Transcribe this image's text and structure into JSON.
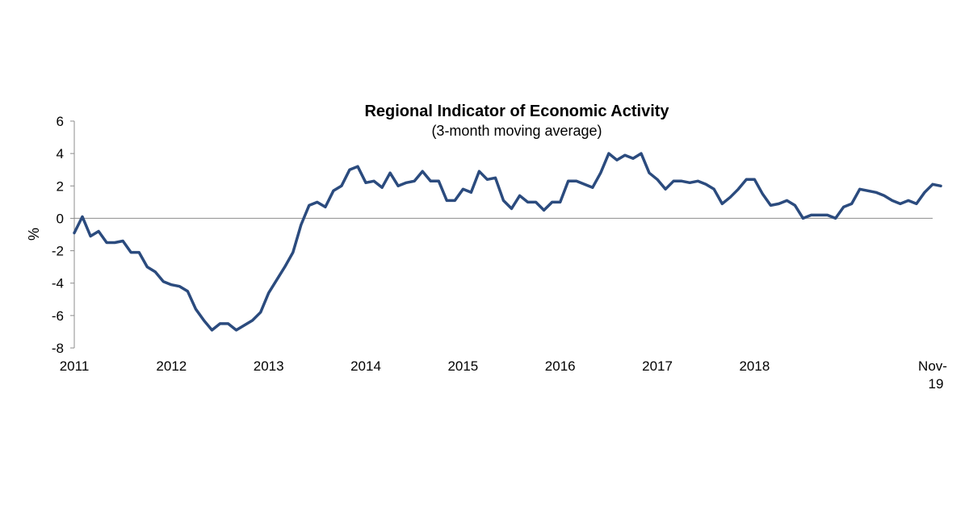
{
  "chart_data": {
    "type": "line",
    "title": "Regional Indicator of Economic Activity",
    "subtitle": "(3-month moving average)",
    "xlabel": "",
    "ylabel": "%",
    "ylim": [
      -8,
      6
    ],
    "yticks": [
      6,
      4,
      2,
      0,
      -2,
      -4,
      -6,
      -8
    ],
    "x_start": "2011-01",
    "x_end": "2019-11",
    "x_tick_labels": [
      {
        "date": "2011-01",
        "label": "2011"
      },
      {
        "date": "2012-01",
        "label": "2012"
      },
      {
        "date": "2013-01",
        "label": "2013"
      },
      {
        "date": "2014-01",
        "label": "2014"
      },
      {
        "date": "2015-01",
        "label": "2015"
      },
      {
        "date": "2016-01",
        "label": "2016"
      },
      {
        "date": "2017-01",
        "label": "2017"
      },
      {
        "date": "2018-01",
        "label": "2018"
      },
      {
        "date": "2019-11",
        "label": "Nov-",
        "label2": "19"
      }
    ],
    "grid": false,
    "zero_line": true,
    "line_color": "#2b4b7e",
    "series": [
      {
        "name": "",
        "values": [
          -0.9,
          0.1,
          -1.1,
          -0.8,
          -1.5,
          -1.5,
          -1.4,
          -2.1,
          -2.1,
          -3.0,
          -3.3,
          -3.9,
          -4.1,
          -4.2,
          -4.5,
          -5.6,
          -6.3,
          -6.9,
          -6.5,
          -6.5,
          -6.9,
          -6.6,
          -6.3,
          -5.8,
          -4.6,
          -3.8,
          -3.0,
          -2.1,
          -0.4,
          0.8,
          1.0,
          0.7,
          1.7,
          2.0,
          3.0,
          3.2,
          2.2,
          2.3,
          1.9,
          2.8,
          2.0,
          2.2,
          2.3,
          2.9,
          2.3,
          2.3,
          1.1,
          1.1,
          1.8,
          1.6,
          2.9,
          2.4,
          2.5,
          1.1,
          0.6,
          1.4,
          1.0,
          1.0,
          0.5,
          1.0,
          1.0,
          2.3,
          2.3,
          2.1,
          1.9,
          2.8,
          4.0,
          3.6,
          3.9,
          3.7,
          4.0,
          2.8,
          2.4,
          1.8,
          2.3,
          2.3,
          2.2,
          2.3,
          2.1,
          1.8,
          0.9,
          1.3,
          1.8,
          2.4,
          2.4,
          1.5,
          0.8,
          0.9,
          1.1,
          0.8,
          0.0,
          0.2,
          0.2,
          0.2,
          0.0,
          0.7,
          0.9,
          1.8,
          1.7,
          1.6,
          1.4,
          1.1,
          0.9,
          1.1,
          0.9,
          1.6,
          2.1,
          2.0
        ]
      }
    ]
  }
}
